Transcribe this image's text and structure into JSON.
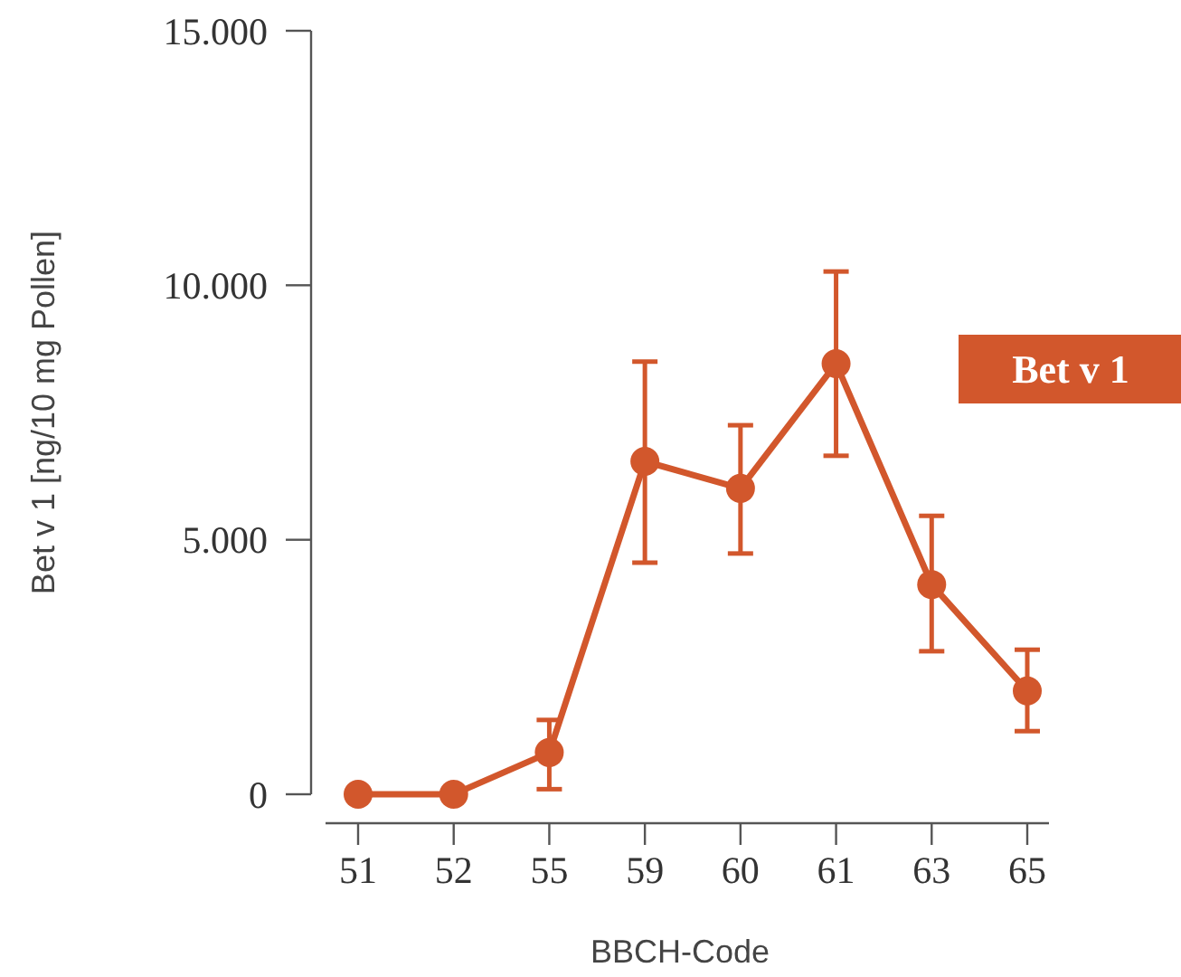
{
  "chart_data": {
    "type": "line",
    "xlabel": "BBCH-Code",
    "ylabel": "Bet v 1 [ng/10 mg Pollen]",
    "categories": [
      "51",
      "52",
      "55",
      "59",
      "60",
      "61",
      "63",
      "65"
    ],
    "series": [
      {
        "name": "Bet v 1",
        "color": "#d2572c",
        "values": [
          0,
          0,
          820,
          6540,
          6010,
          8460,
          4120,
          2030
        ],
        "errors": [
          null,
          null,
          [
            100,
            1460
          ],
          [
            4550,
            8500
          ],
          [
            4730,
            7250
          ],
          [
            6650,
            10270
          ],
          [
            2810,
            5470
          ],
          [
            1240,
            2840
          ]
        ]
      }
    ],
    "ylim": [
      0,
      15000
    ],
    "yticks": [
      {
        "value": 0,
        "label": "0"
      },
      {
        "value": 5000,
        "label": "5.000"
      },
      {
        "value": 10000,
        "label": "10.000"
      },
      {
        "value": 15000,
        "label": "15.000"
      }
    ],
    "marker": "circle",
    "legend": "right",
    "grid": false
  }
}
